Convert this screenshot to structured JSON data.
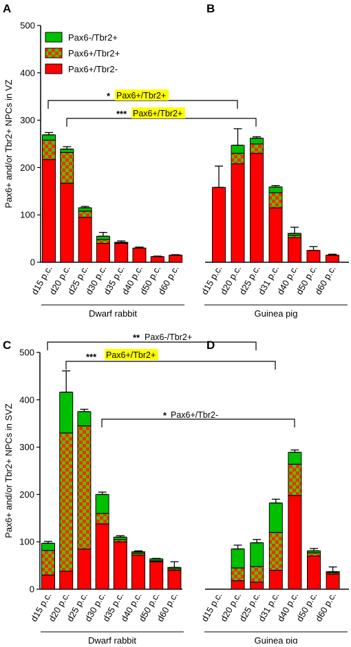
{
  "colors": {
    "red": "#ff0000",
    "green": "#00c000",
    "check_red": "#ff2a00",
    "check_green": "#55c000",
    "highlight": "#ffff00"
  },
  "legend": {
    "items": [
      {
        "label": "Pax6-/Tbr2+",
        "fill": "green"
      },
      {
        "label": "Pax6+/Tbr2+",
        "fill": "check"
      },
      {
        "label": "Pax6+/Tbr2-",
        "fill": "red"
      }
    ]
  },
  "chart_data": [
    {
      "panel": "A",
      "type": "bar",
      "stacked": true,
      "ylabel": "Pax6+ and/or Tbr2+ NPCs in VZ",
      "xlabel": "Dwarf rabbit",
      "ylim": [
        0,
        500
      ],
      "yticks": [
        0,
        100,
        200,
        300,
        400,
        500
      ],
      "categories": [
        "d15 p.c.",
        "d20 p.c.",
        "d25 p.c.",
        "d30 p.c.",
        "d35 p.c.",
        "d40 p.c.",
        "d50 p.c.",
        "d60 p.c."
      ],
      "series": [
        {
          "name": "Pax6+/Tbr2-",
          "values": [
            217,
            167,
            95,
            40,
            40,
            30,
            12,
            15
          ]
        },
        {
          "name": "Pax6+/Tbr2+",
          "values": [
            41,
            65,
            13,
            8,
            1,
            0,
            0,
            0
          ]
        },
        {
          "name": "Pax6-/Tbr2+",
          "values": [
            11,
            7,
            7,
            7,
            1,
            0,
            0,
            0
          ]
        }
      ],
      "errors": [
        5,
        5,
        3,
        8,
        3,
        2,
        1,
        1
      ]
    },
    {
      "panel": "B",
      "type": "bar",
      "stacked": true,
      "ylabel": "",
      "xlabel": "Guinea pig",
      "ylim": [
        0,
        500
      ],
      "yticks": [],
      "categories": [
        "d15 p.c.",
        "d20 p.c.",
        "d25 p.c.",
        "d31 p.c.",
        "d40 p.c.",
        "d50 p.c.",
        "d60 p.c."
      ],
      "series": [
        {
          "name": "Pax6+/Tbr2-",
          "values": [
            158,
            208,
            230,
            115,
            52,
            25,
            15
          ]
        },
        {
          "name": "Pax6+/Tbr2+",
          "values": [
            0,
            22,
            20,
            32,
            5,
            0,
            0
          ]
        },
        {
          "name": "Pax6-/Tbr2+",
          "values": [
            0,
            17,
            12,
            12,
            4,
            0,
            0
          ]
        }
      ],
      "errors": [
        45,
        35,
        3,
        3,
        13,
        8,
        2
      ]
    },
    {
      "panel": "C",
      "type": "bar",
      "stacked": true,
      "ylabel": "Pax6+ and/or Tbr2+ NPCs in SVZ",
      "xlabel": "Dwarf rabbit",
      "ylim": [
        0,
        500
      ],
      "yticks": [
        0,
        100,
        200,
        300,
        400,
        500
      ],
      "categories": [
        "d15 p.c.",
        "d20 p.c.",
        "d25 p.c.",
        "d30 p.c.",
        "d35 p.c.",
        "d40 p.c.",
        "d50 p.c.",
        "d60 p.c."
      ],
      "series": [
        {
          "name": "Pax6+/Tbr2-",
          "values": [
            30,
            38,
            85,
            138,
            100,
            72,
            58,
            40
          ]
        },
        {
          "name": "Pax6+/Tbr2+",
          "values": [
            52,
            292,
            260,
            22,
            5,
            4,
            2,
            3
          ]
        },
        {
          "name": "Pax6-/Tbr2+",
          "values": [
            15,
            86,
            30,
            40,
            5,
            3,
            4,
            3
          ]
        }
      ],
      "errors": [
        4,
        45,
        5,
        5,
        3,
        2,
        1,
        12
      ]
    },
    {
      "panel": "D",
      "type": "bar",
      "stacked": true,
      "ylabel": "",
      "xlabel": "Guinea pig",
      "ylim": [
        0,
        500
      ],
      "yticks": [],
      "categories": [
        "d15 p.c.",
        "d20 p.c.",
        "d25 p.c.",
        "d31 p.c.",
        "d40 p.c.",
        "d50 p.c.",
        "d60 p.c."
      ],
      "series": [
        {
          "name": "Pax6+/Tbr2-",
          "values": [
            0,
            18,
            15,
            40,
            198,
            70,
            32
          ]
        },
        {
          "name": "Pax6+/Tbr2+",
          "values": [
            0,
            27,
            33,
            80,
            66,
            7,
            3
          ]
        },
        {
          "name": "Pax6-/Tbr2+",
          "values": [
            0,
            40,
            50,
            62,
            25,
            4,
            2
          ]
        }
      ],
      "errors": [
        0,
        8,
        7,
        8,
        5,
        5,
        10
      ]
    }
  ],
  "annotations": [
    {
      "stars": "*",
      "text": "Pax6+/Tbr2+",
      "highlight": true
    },
    {
      "stars": "***",
      "text": "Pax6+/Tbr2+",
      "highlight": true
    },
    {
      "stars": "**",
      "text": "Pax6-/Tbr2+",
      "highlight": false
    },
    {
      "stars": "***",
      "text": "Pax6+/Tbr2+",
      "highlight": true
    },
    {
      "stars": "*",
      "text": "Pax6+/Tbr2-",
      "highlight": false
    }
  ]
}
